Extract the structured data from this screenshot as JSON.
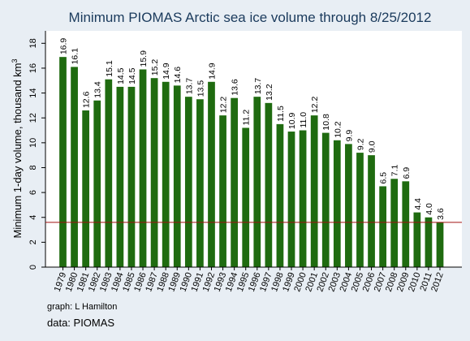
{
  "chart_data": {
    "type": "bar",
    "title": "Minimum PIOMAS Arctic sea ice volume through 8/25/2012",
    "ylabel": "Minimum 1-day volume, thousand km",
    "ylabel_superscript": "3",
    "xlabel": "",
    "ylim": [
      0,
      19
    ],
    "yticks": [
      0,
      2,
      4,
      6,
      8,
      10,
      12,
      14,
      16,
      18
    ],
    "grid": false,
    "legend": "none",
    "reference_line": {
      "value": 3.6,
      "color": "#a01010"
    },
    "bar_color": "#1f6b10",
    "categories": [
      "1979",
      "1980",
      "1981",
      "1982",
      "1983",
      "1984",
      "1985",
      "1986",
      "1987",
      "1988",
      "1989",
      "1990",
      "1991",
      "1992",
      "1993",
      "1994",
      "1995",
      "1996",
      "1997",
      "1998",
      "1999",
      "2000",
      "2001",
      "2002",
      "2003",
      "2004",
      "2005",
      "2006",
      "2007",
      "2008",
      "2009",
      "2010",
      "2011",
      "2012"
    ],
    "values": [
      16.9,
      16.1,
      12.6,
      13.4,
      15.1,
      14.5,
      14.5,
      15.9,
      15.2,
      14.9,
      14.6,
      13.7,
      13.5,
      14.9,
      12.2,
      13.6,
      11.2,
      13.7,
      13.2,
      11.5,
      10.9,
      11.0,
      12.2,
      10.8,
      10.2,
      9.9,
      9.2,
      9.0,
      6.5,
      7.1,
      6.9,
      4.4,
      4.0,
      3.6
    ],
    "data_labels": [
      "16.9",
      "16.1",
      "12.6",
      "13.4",
      "15.1",
      "14.5",
      "14.5",
      "15.9",
      "15.2",
      "14.9",
      "14.6",
      "13.7",
      "13.5",
      "14.9",
      "12.2",
      "13.6",
      "11.2",
      "13.7",
      "13.2",
      "11.5",
      "10.9",
      "11.0",
      "12.2",
      "10.8",
      "10.2",
      "9.9",
      "9.2",
      "9.0",
      "6.5",
      "7.1",
      "6.9",
      "4.4",
      "4.0",
      "3.6"
    ]
  },
  "notes": {
    "graph_credit": "graph:  L Hamilton",
    "data_source": "data:  PIOMAS"
  },
  "colors": {
    "background": "#e8eef4",
    "plot_background": "#ffffff",
    "title": "#1a3a5c",
    "bars": "#1f6b10",
    "reference_line": "#a01010"
  }
}
